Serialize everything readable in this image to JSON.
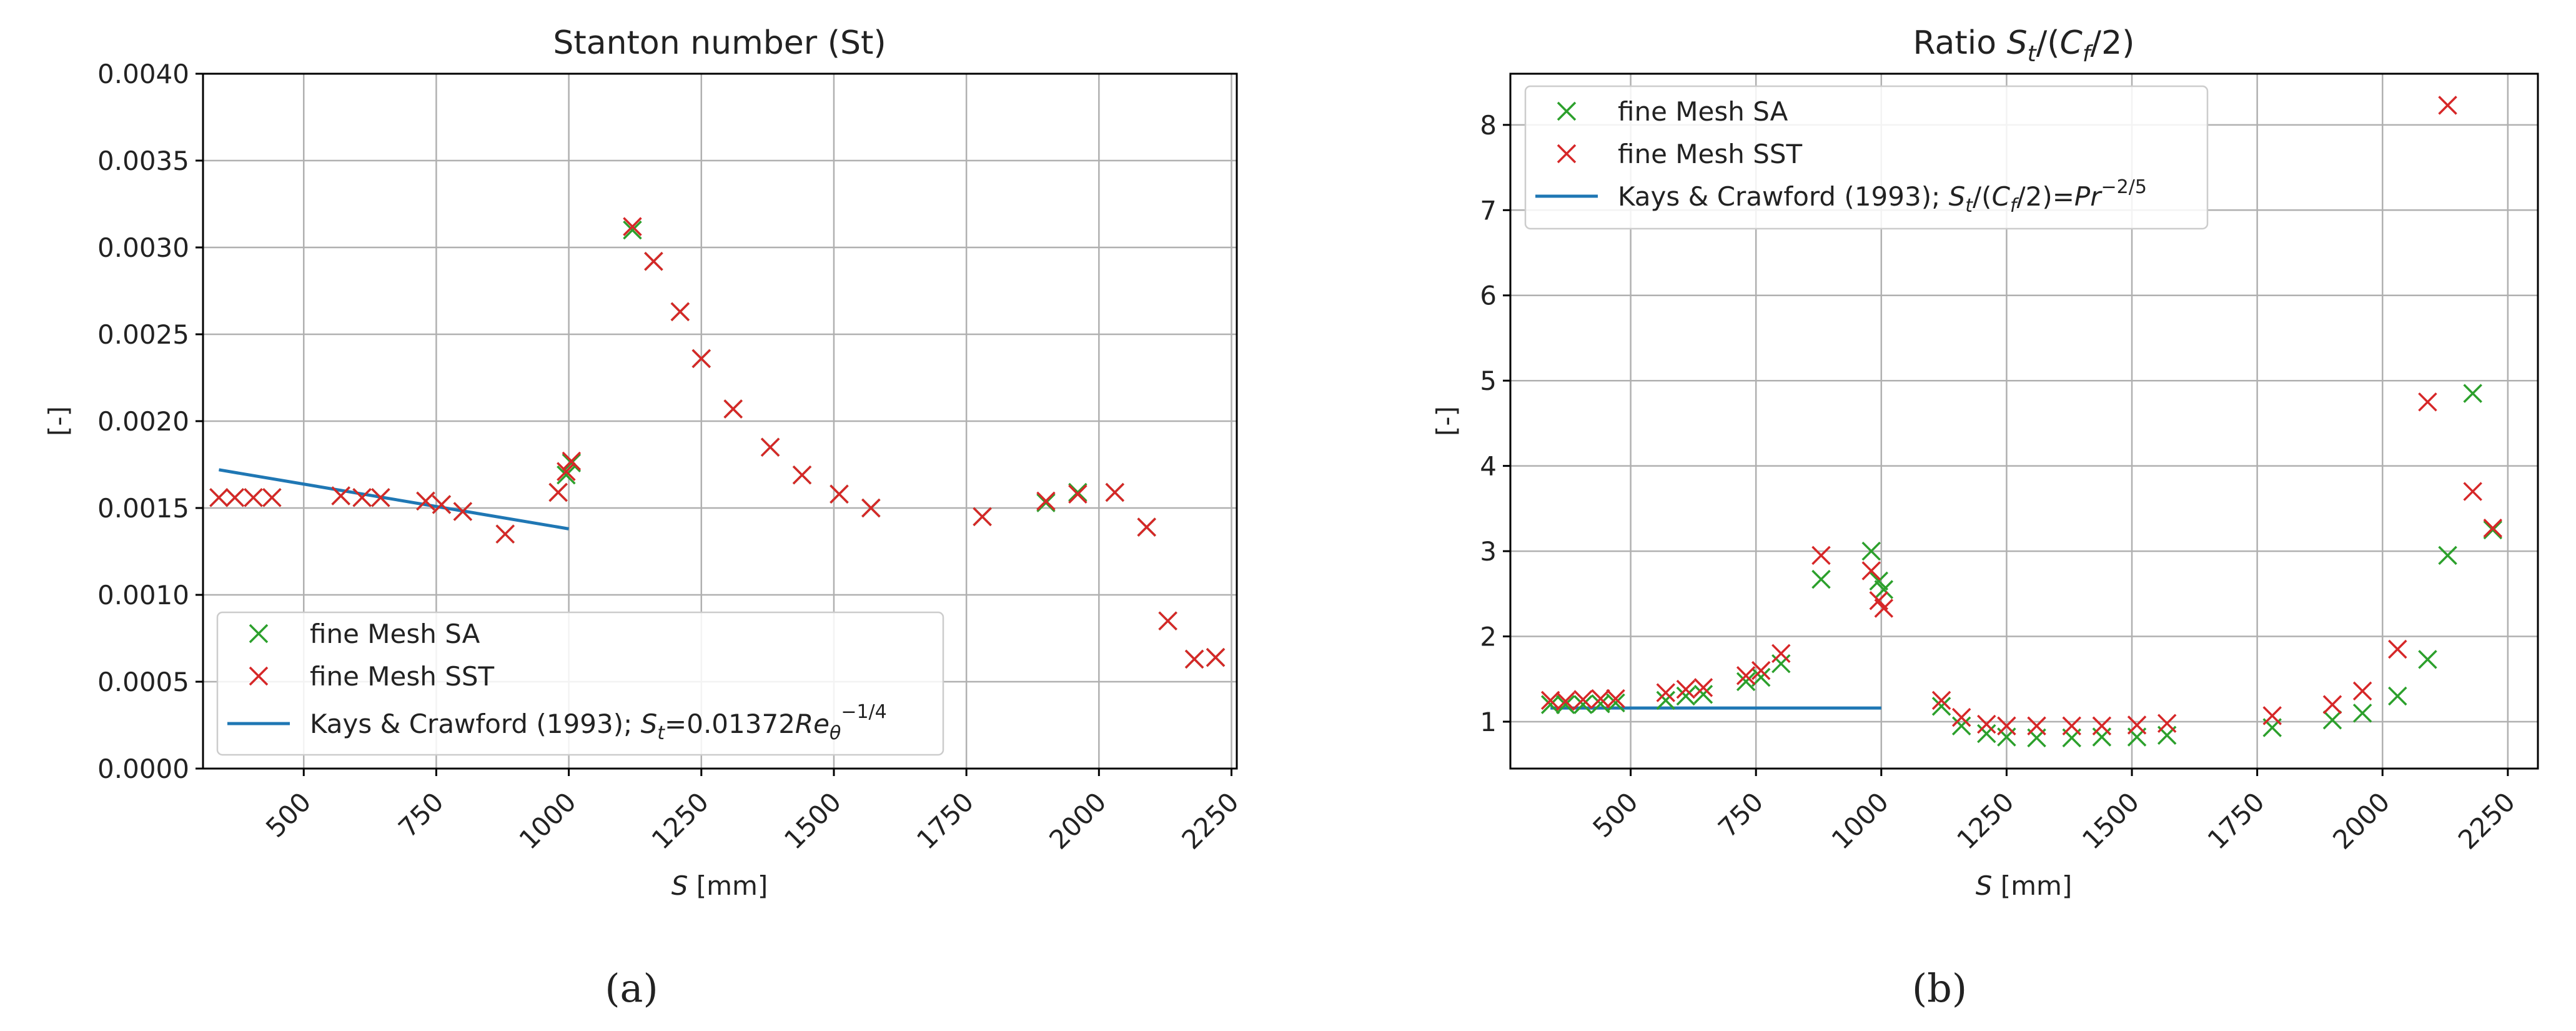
{
  "chart_data": [
    {
      "type": "scatter",
      "panel_label": "(a)",
      "title": "Stanton number (St)",
      "xlabel": {
        "var": "S",
        "unit": " [mm]"
      },
      "ylabel": "[-]",
      "xlim": [
        310,
        2260
      ],
      "ylim": [
        0,
        0.004
      ],
      "xticks": [
        500,
        750,
        1000,
        1250,
        1500,
        1750,
        2000,
        2250
      ],
      "xtick_labels": [
        "500",
        "750",
        "1000",
        "1250",
        "1500",
        "1750",
        "2000",
        "2250"
      ],
      "yticks": [
        0,
        0.0005,
        0.001,
        0.0015,
        0.002,
        0.0025,
        0.003,
        0.0035,
        0.004
      ],
      "ytick_labels": [
        "0.0000",
        "0.0005",
        "0.0010",
        "0.0015",
        "0.0020",
        "0.0025",
        "0.0030",
        "0.0035",
        "0.0040"
      ],
      "grid": true,
      "legend_position": "lower-left",
      "series": [
        {
          "name": "fine Mesh SA",
          "marker": "x",
          "color": "#2ca02c",
          "x": [
            340,
            370,
            405,
            440,
            570,
            610,
            645,
            730,
            760,
            800,
            880,
            980,
            995,
            1005,
            1120,
            1160,
            1210,
            1250,
            1310,
            1380,
            1440,
            1510,
            1570,
            1780,
            1900,
            1960,
            2030,
            2090,
            2130,
            2180,
            2220
          ],
          "y": [
            0.00156,
            0.00156,
            0.00156,
            0.00156,
            0.00157,
            0.00156,
            0.00156,
            0.00154,
            0.00152,
            0.00148,
            0.00135,
            0.00159,
            0.00169,
            0.00176,
            0.0031,
            0.00292,
            0.00263,
            0.00236,
            0.00207,
            0.00185,
            0.00169,
            0.00158,
            0.0015,
            0.00145,
            0.00153,
            0.00159,
            0.00159,
            0.00139,
            0.00085,
            0.00063,
            0.00064
          ]
        },
        {
          "name": "fine Mesh SST",
          "marker": "x",
          "color": "#d62728",
          "x": [
            340,
            370,
            405,
            440,
            570,
            610,
            645,
            730,
            760,
            800,
            880,
            980,
            995,
            1005,
            1120,
            1160,
            1210,
            1250,
            1310,
            1380,
            1440,
            1510,
            1570,
            1780,
            1900,
            1960,
            2030,
            2090,
            2130,
            2180,
            2220
          ],
          "y": [
            0.00156,
            0.00156,
            0.00156,
            0.00156,
            0.00157,
            0.00156,
            0.00156,
            0.00154,
            0.00152,
            0.00148,
            0.00135,
            0.00159,
            0.00171,
            0.00177,
            0.00312,
            0.00292,
            0.00263,
            0.00236,
            0.00207,
            0.00185,
            0.00169,
            0.00158,
            0.0015,
            0.00145,
            0.00154,
            0.00158,
            0.00159,
            0.00139,
            0.00085,
            0.00063,
            0.00064
          ]
        },
        {
          "name": "Kays & Crawford (1993); ",
          "name_math": "St=0.01372Reθ^-1/4",
          "marker": "line",
          "color": "#1f77b4",
          "x": [
            340,
            1000
          ],
          "y": [
            0.00172,
            0.00138
          ]
        }
      ]
    },
    {
      "type": "scatter",
      "panel_label": "(b)",
      "title": "Ratio ",
      "title_math": "St/(Cf/2)",
      "xlabel": {
        "var": "S",
        "unit": " [mm]"
      },
      "ylabel": "[-]",
      "xlim": [
        260,
        2310
      ],
      "ylim": [
        0.45,
        8.6
      ],
      "xticks": [
        500,
        750,
        1000,
        1250,
        1500,
        1750,
        2000,
        2250
      ],
      "xtick_labels": [
        "500",
        "750",
        "1000",
        "1250",
        "1500",
        "1750",
        "2000",
        "2250"
      ],
      "yticks": [
        1,
        2,
        3,
        4,
        5,
        6,
        7,
        8
      ],
      "ytick_labels": [
        "1",
        "2",
        "3",
        "4",
        "5",
        "6",
        "7",
        "8"
      ],
      "grid": true,
      "legend_position": "upper-left",
      "series": [
        {
          "name": "fine Mesh SA",
          "marker": "x",
          "color": "#2ca02c",
          "x": [
            340,
            370,
            405,
            440,
            470,
            570,
            610,
            645,
            730,
            760,
            800,
            880,
            980,
            995,
            1005,
            1120,
            1160,
            1210,
            1250,
            1310,
            1380,
            1440,
            1510,
            1570,
            1780,
            1900,
            1960,
            2030,
            2090,
            2130,
            2180,
            2220
          ],
          "y": [
            1.2,
            1.2,
            1.2,
            1.21,
            1.22,
            1.25,
            1.3,
            1.32,
            1.47,
            1.52,
            1.68,
            2.67,
            3.0,
            2.65,
            2.55,
            1.18,
            0.95,
            0.86,
            0.82,
            0.81,
            0.81,
            0.82,
            0.82,
            0.84,
            0.93,
            1.02,
            1.1,
            1.3,
            1.73,
            2.95,
            4.85,
            3.25
          ]
        },
        {
          "name": "fine Mesh SST",
          "marker": "x",
          "color": "#d62728",
          "x": [
            340,
            370,
            405,
            440,
            470,
            570,
            610,
            645,
            730,
            760,
            800,
            880,
            980,
            995,
            1005,
            1120,
            1160,
            1210,
            1250,
            1310,
            1380,
            1440,
            1510,
            1570,
            1780,
            1900,
            1960,
            2030,
            2090,
            2130,
            2180,
            2220
          ],
          "y": [
            1.25,
            1.24,
            1.26,
            1.27,
            1.27,
            1.34,
            1.38,
            1.4,
            1.54,
            1.6,
            1.8,
            2.95,
            2.77,
            2.42,
            2.33,
            1.25,
            1.05,
            0.97,
            0.95,
            0.95,
            0.95,
            0.95,
            0.96,
            0.98,
            1.07,
            1.2,
            1.36,
            1.85,
            4.75,
            8.23,
            3.7,
            3.27
          ]
        },
        {
          "name": "Kays & Crawford (1993); ",
          "name_math": "St/(Cf/2)=Pr^-2/5",
          "marker": "line",
          "color": "#1f77b4",
          "x": [
            340,
            1000
          ],
          "y": [
            1.16,
            1.16
          ]
        }
      ]
    }
  ]
}
